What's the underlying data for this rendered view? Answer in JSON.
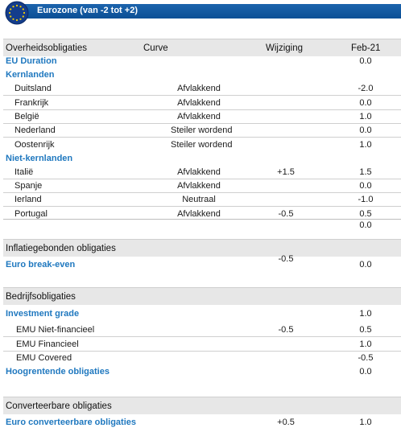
{
  "header": {
    "title": "Eurozone (van -2 tot +2)",
    "flag_icon": "eu-flag-icon"
  },
  "table_header": {
    "col1": "Overheidsobligaties",
    "col2": "Curve",
    "col3": "Wijziging",
    "col4": "Feb-21"
  },
  "gov": {
    "eu_duration": {
      "label": "EU Duration",
      "feb": "0.0"
    },
    "kern_label": "Kernlanden",
    "kern": [
      {
        "label": "Duitsland",
        "curve": "Afvlakkend",
        "change": "",
        "feb": "-2.0"
      },
      {
        "label": "Frankrijk",
        "curve": "Afvlakkend",
        "change": "",
        "feb": "0.0"
      },
      {
        "label": "België",
        "curve": "Afvlakkend",
        "change": "",
        "feb": "1.0"
      },
      {
        "label": "Nederland",
        "curve": "Steiler wordend",
        "change": "",
        "feb": "0.0"
      },
      {
        "label": "Oostenrijk",
        "curve": "Steiler wordend",
        "change": "",
        "feb": "1.0"
      }
    ],
    "niet_label": "Niet-kernlanden",
    "niet": [
      {
        "label": "Italië",
        "curve": "Afvlakkend",
        "change": "+1.5",
        "feb": "1.5"
      },
      {
        "label": "Spanje",
        "curve": "Afvlakkend",
        "change": "",
        "feb": "0.0"
      },
      {
        "label": "Ierland",
        "curve": "Neutraal",
        "change": "",
        "feb": "-1.0"
      },
      {
        "label": "Portugal",
        "curve": "Afvlakkend",
        "change": "-0.5",
        "feb": "0.5"
      }
    ],
    "extra_feb": "0.0"
  },
  "inflatie": {
    "section": "Inflatiegebonden obligaties",
    "label": "Euro break-even",
    "change": "-0.5",
    "feb": "0.0"
  },
  "bedrijf": {
    "section": "Bedrijfsobligaties",
    "ig_label": "Investment grade",
    "ig_feb": "1.0",
    "items": [
      {
        "label": "EMU Niet-financieel",
        "change": "-0.5",
        "feb": "0.5"
      },
      {
        "label": "EMU Financieel",
        "change": "",
        "feb": "1.0"
      },
      {
        "label": "EMU Covered",
        "change": "",
        "feb": "-0.5"
      }
    ],
    "hy_label": "Hoogrentende obligaties",
    "hy_feb": "0.0"
  },
  "conv": {
    "section": "Converteerbare obligaties",
    "label": "Euro converteerbare obligaties",
    "change": "+0.5",
    "feb": "1.0"
  }
}
